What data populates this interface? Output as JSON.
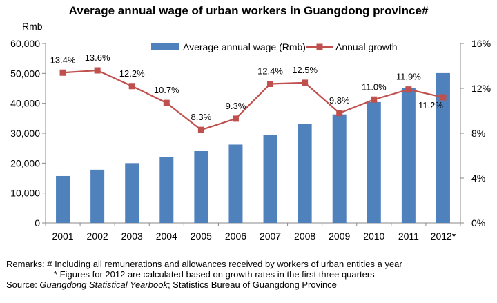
{
  "chart_data": {
    "type": "bar",
    "title": "Average annual wage of urban workers in Guangdong province#",
    "ylabel": "Rmb",
    "y2label": "",
    "categories": [
      "2001",
      "2002",
      "2003",
      "2004",
      "2005",
      "2006",
      "2007",
      "2008",
      "2009",
      "2010",
      "2011",
      "2012*"
    ],
    "ylim": [
      0,
      60000
    ],
    "y_ticks": [
      "0",
      "10,000",
      "20,000",
      "30,000",
      "40,000",
      "50,000",
      "60,000"
    ],
    "y2lim": [
      0,
      16
    ],
    "y2_ticks": [
      "0%",
      "4%",
      "8%",
      "12%",
      "16%"
    ],
    "legend_position": "top",
    "grid": false,
    "series": [
      {
        "name": "Average annual wage (Rmb)",
        "type": "bar",
        "axis": "left",
        "color": "#4f81bd",
        "values": [
          15700,
          17800,
          20000,
          22100,
          24000,
          26200,
          29400,
          33100,
          36300,
          40400,
          45100,
          50100
        ]
      },
      {
        "name": "Annual growth",
        "type": "line",
        "axis": "right",
        "color": "#c0504d",
        "values": [
          13.4,
          13.6,
          12.2,
          10.7,
          8.3,
          9.3,
          12.4,
          12.5,
          9.8,
          11.0,
          11.9,
          11.2
        ],
        "labels": [
          "13.4%",
          "13.6%",
          "12.2%",
          "10.7%",
          "8.3%",
          "9.3%",
          "12.4%",
          "12.5%",
          "9.8%",
          "11.0%",
          "11.9%",
          "11.2%"
        ]
      }
    ]
  },
  "notes": {
    "remark_line1": "Remarks: # Including  all remunerations and allowances  received by workers of urban entities a year",
    "remark_line2": "* Figures for 2012 are calculated based on growth  rates in the first three quarters",
    "source_prefix": "Source: ",
    "source_italic": "Guangdong Statistical Yearbook",
    "source_suffix": "; Statistics Bureau of Guangdong  Province"
  }
}
